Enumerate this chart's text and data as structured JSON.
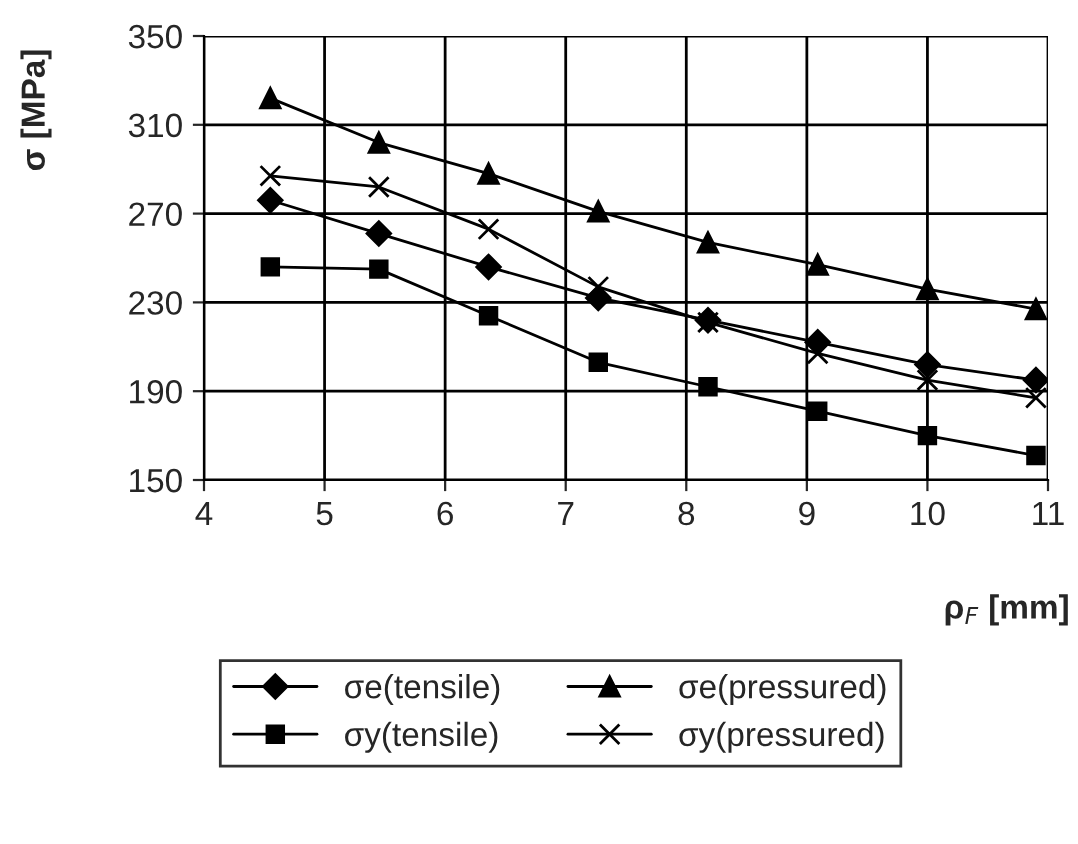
{
  "chart_data": {
    "type": "line",
    "xlabel": "ρ$_{F}$ [mm]",
    "ylabel": "σ [MPa]",
    "x": [
      4.55,
      5.45,
      6.36,
      7.27,
      8.18,
      9.09,
      10.0,
      10.9
    ],
    "series": [
      {
        "name": "σe(tensile)",
        "color": "#000000",
        "marker": "diamond",
        "values": [
          276,
          261,
          246,
          232,
          222,
          212,
          202,
          195
        ]
      },
      {
        "name": "σy(tensile)",
        "color": "#000000",
        "marker": "square",
        "values": [
          246,
          245,
          224,
          203,
          192,
          181,
          170,
          161
        ]
      },
      {
        "name": "σe(pressured)",
        "color": "#000000",
        "marker": "triangle",
        "values": [
          322,
          302,
          288,
          271,
          257,
          247,
          236,
          227
        ]
      },
      {
        "name": "σy(pressured)",
        "color": "#000000",
        "marker": "cross",
        "values": [
          287,
          282,
          263,
          237,
          221,
          207,
          195,
          187
        ]
      }
    ],
    "xlim": [
      4,
      11
    ],
    "xticks": [
      4,
      5,
      6,
      7,
      8,
      9,
      10,
      11
    ],
    "ylim": [
      150,
      350
    ],
    "yticks": [
      150,
      190,
      230,
      270,
      310,
      350
    ],
    "grid": true,
    "legend": "bottom"
  }
}
